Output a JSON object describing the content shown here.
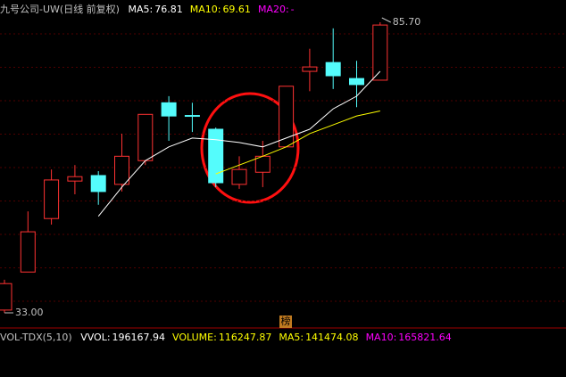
{
  "chart_data": {
    "type": "candlestick",
    "title": "九号公司-UW(日线 前复权)",
    "up_color": "#ff3232",
    "down_color": "#54fcfc",
    "open": [
      33.5,
      40.4,
      50.1,
      56.9,
      57.9,
      56.3,
      60.6,
      71.1,
      68.8,
      66.3,
      56.3,
      58.5,
      63.1,
      76.8,
      78.4,
      75.5,
      75.2
    ],
    "high": [
      39.0,
      51.4,
      59.0,
      59.8,
      58.7,
      65.5,
      69.0,
      72.3,
      71.1,
      66.6,
      61.4,
      64.2,
      74.1,
      80.9,
      84.6,
      78.7,
      85.7
    ],
    "low": [
      33.0,
      40.4,
      49.0,
      54.5,
      52.6,
      55.0,
      59.8,
      64.2,
      65.8,
      55.8,
      55.5,
      55.8,
      63.1,
      73.2,
      73.6,
      70.3,
      75.2
    ],
    "close": [
      38.3,
      47.7,
      57.1,
      57.7,
      55.0,
      61.4,
      69.0,
      68.7,
      68.7,
      56.6,
      59.0,
      61.4,
      74.1,
      77.6,
      76.0,
      74.4,
      85.2
    ],
    "series": [
      {
        "name": "MA5:",
        "color": "#ffffff",
        "values": [
          null,
          null,
          null,
          null,
          50.5,
          55.8,
          60.6,
          63.1,
          64.7,
          64.4,
          63.9,
          63.1,
          64.7,
          66.3,
          70.0,
          72.3,
          76.81
        ]
      },
      {
        "name": "MA10:",
        "color": "#ffff00",
        "values": [
          null,
          null,
          null,
          null,
          null,
          null,
          null,
          null,
          null,
          58.2,
          59.8,
          61.4,
          63.1,
          65.5,
          67.1,
          68.7,
          69.61
        ]
      },
      {
        "name": "MA20:",
        "color": "#ff00ff",
        "values": [
          null,
          null,
          null,
          null,
          null,
          null,
          null,
          null,
          null,
          null,
          null,
          null,
          null,
          null,
          null,
          null,
          null
        ],
        "value_label": "-"
      }
    ],
    "high_label": {
      "value": 85.7,
      "label": "85.70"
    },
    "low_label": {
      "value": 33,
      "label": "33.00"
    },
    "badge": "榜",
    "volume_panel": {
      "title": "VOL-TDX(5,10)",
      "indicators": [
        {
          "name": "VVOL:",
          "value": 196167.94,
          "color": "#ffffff"
        },
        {
          "name": "VOLUME:",
          "value": 116247.87,
          "color": "#ffff00"
        },
        {
          "name": "MA5:",
          "value": 141474.08,
          "color": "#ffff00"
        },
        {
          "name": "MA10:",
          "value": 165821.64,
          "color": "#ff00ff"
        }
      ]
    }
  }
}
